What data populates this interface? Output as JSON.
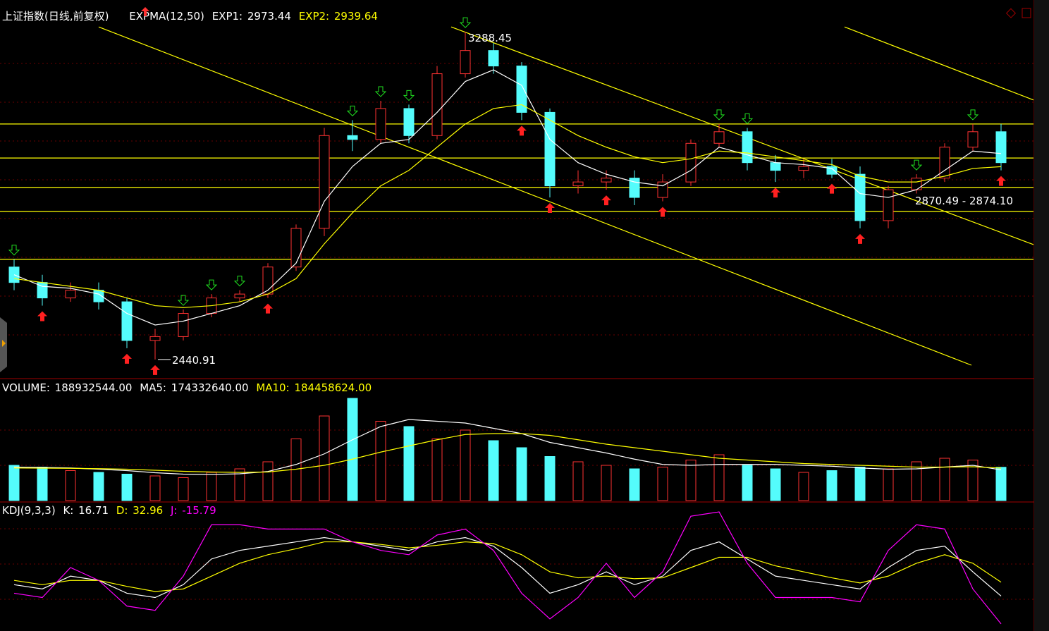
{
  "chart_data": [
    {
      "type": "candlestick",
      "title": "上证指数(日线,前复权)",
      "indicator": "EXPMA(12,50)",
      "up_color": "#ff3232",
      "down_color": "#54fcfc",
      "ylim": [
        2395,
        3316
      ],
      "candles": {
        "open": [
          2680,
          2640,
          2600,
          2620,
          2590,
          2490,
          2500,
          2560,
          2600,
          2610,
          2680,
          2780,
          3020,
          3010,
          3090,
          3020,
          3180,
          3240,
          3200,
          3080,
          2890,
          2900,
          2910,
          2860,
          2900,
          3000,
          3030,
          2950,
          2930,
          2940,
          2920,
          2800,
          2880,
          2910,
          2990,
          3030
        ],
        "high": [
          2700,
          2660,
          2640,
          2640,
          2600,
          2520,
          2570,
          2610,
          2620,
          2690,
          2790,
          3040,
          3060,
          3110,
          3100,
          3200,
          3288.45,
          3260,
          3210,
          3090,
          2930,
          2930,
          2930,
          2920,
          3010,
          3050,
          3040,
          2970,
          2960,
          2960,
          2940,
          2890,
          2920,
          3000,
          3050,
          3050
        ],
        "low": [
          2620,
          2580,
          2590,
          2570,
          2470,
          2440.91,
          2490,
          2550,
          2590,
          2600,
          2670,
          2760,
          2980,
          3000,
          3000,
          3010,
          3170,
          3180,
          3060,
          2860,
          2870,
          2880,
          2840,
          2850,
          2890,
          2990,
          2930,
          2900,
          2910,
          2910,
          2780,
          2780,
          2870,
          2900,
          2980,
          2930
        ],
        "close": [
          2640,
          2600,
          2620,
          2590,
          2490,
          2500,
          2560,
          2600,
          2610,
          2680,
          2780,
          3020,
          3010,
          3090,
          3020,
          3180,
          3240,
          3200,
          3080,
          2890,
          2900,
          2910,
          2860,
          2900,
          3000,
          3030,
          2950,
          2930,
          2940,
          2920,
          2800,
          2880,
          2910,
          2990,
          3030,
          2950
        ]
      },
      "series": [
        {
          "name": "EXP1:",
          "color": "#ffffff",
          "values": [
            2660,
            2630,
            2625,
            2610,
            2560,
            2530,
            2540,
            2560,
            2580,
            2620,
            2690,
            2850,
            2940,
            3000,
            3010,
            3080,
            3160,
            3190,
            3150,
            3010,
            2950,
            2920,
            2900,
            2890,
            2930,
            2990,
            2970,
            2950,
            2945,
            2935,
            2870,
            2860,
            2880,
            2930,
            2980,
            2973.44
          ]
        },
        {
          "name": "EXP2:",
          "color": "#ffff00",
          "values": [
            2650,
            2640,
            2630,
            2620,
            2600,
            2580,
            2575,
            2580,
            2590,
            2610,
            2650,
            2740,
            2820,
            2890,
            2930,
            2990,
            3050,
            3090,
            3100,
            3060,
            3020,
            2990,
            2965,
            2950,
            2960,
            2980,
            2975,
            2965,
            2955,
            2945,
            2915,
            2900,
            2900,
            2915,
            2935,
            2939.64
          ]
        }
      ],
      "hlines": [
        3050,
        2962,
        2886,
        2824,
        2700
      ],
      "trendlines": [
        [
          [
            3,
            3301
          ],
          [
            33.95,
            2426
          ]
        ],
        [
          [
            15.5,
            3301
          ],
          [
            36.15,
            2738
          ]
        ],
        [
          [
            29.45,
            3301
          ],
          [
            36.15,
            3112
          ]
        ]
      ],
      "buy_signals": [
        1,
        4,
        5,
        9,
        18,
        19,
        21,
        23,
        27,
        29,
        30,
        35
      ],
      "sell_signals": [
        0,
        6,
        7,
        8,
        12,
        13,
        14,
        16,
        25,
        26,
        32,
        34
      ],
      "range_annotation": "2870.49 - 2874.10"
    },
    {
      "type": "bar",
      "ylim": [
        0,
        680000000
      ],
      "series": [
        {
          "name": "VOLUME:",
          "last_label": "188932544.00",
          "values": [
            200000000,
            190000000,
            170000000,
            160000000,
            150000000,
            140000000,
            130000000,
            160000000,
            180000000,
            220000000,
            350000000,
            480000000,
            580000000,
            450000000,
            420000000,
            350000000,
            400000000,
            340000000,
            300000000,
            250000000,
            220000000,
            200000000,
            180000000,
            190000000,
            230000000,
            260000000,
            200000000,
            180000000,
            160000000,
            170000000,
            190000000,
            180000000,
            220000000,
            240000000,
            230000000,
            188932544
          ]
        },
        {
          "name": "MA5:",
          "last_label": "174332640.00",
          "color": "#ffffff",
          "values": [
            190000000,
            188000000,
            185000000,
            178000000,
            170000000,
            158000000,
            150000000,
            148000000,
            152000000,
            165000000,
            205000000,
            265000000,
            345000000,
            420000000,
            460000000,
            450000000,
            440000000,
            410000000,
            380000000,
            330000000,
            300000000,
            270000000,
            235000000,
            205000000,
            200000000,
            205000000,
            205000000,
            205000000,
            200000000,
            195000000,
            185000000,
            178000000,
            180000000,
            190000000,
            200000000,
            174332640
          ]
        },
        {
          "name": "MA10:",
          "last_label": "184458624.00",
          "color": "#ffff00",
          "values": [
            185000000,
            184000000,
            183000000,
            181000000,
            178000000,
            172000000,
            166000000,
            162000000,
            160000000,
            162000000,
            178000000,
            200000000,
            235000000,
            275000000,
            310000000,
            345000000,
            375000000,
            380000000,
            380000000,
            370000000,
            345000000,
            320000000,
            300000000,
            280000000,
            260000000,
            240000000,
            230000000,
            220000000,
            210000000,
            205000000,
            200000000,
            195000000,
            190000000,
            190000000,
            192000000,
            184458624
          ]
        }
      ]
    },
    {
      "type": "line",
      "indicator": "KDJ(9,3,3)",
      "ylim": [
        -20,
        120
      ],
      "series": [
        {
          "name": "K:",
          "color": "#ffffff",
          "values": [
            30,
            25,
            40,
            35,
            20,
            15,
            30,
            60,
            70,
            75,
            80,
            85,
            80,
            75,
            70,
            80,
            85,
            75,
            50,
            20,
            30,
            45,
            30,
            40,
            70,
            80,
            60,
            40,
            35,
            30,
            25,
            50,
            70,
            75,
            45,
            16.71
          ]
        },
        {
          "name": "D:",
          "color": "#ffff00",
          "values": [
            35,
            30,
            35,
            35,
            28,
            22,
            25,
            40,
            55,
            65,
            72,
            80,
            80,
            77,
            73,
            76,
            80,
            78,
            65,
            45,
            38,
            40,
            37,
            38,
            50,
            62,
            62,
            52,
            45,
            38,
            32,
            40,
            55,
            65,
            55,
            32.96
          ]
        },
        {
          "name": "J:",
          "color": "#ff00ff",
          "values": [
            20,
            15,
            50,
            35,
            5,
            0,
            40,
            100,
            100,
            95,
            95,
            95,
            80,
            70,
            65,
            88,
            95,
            70,
            20,
            -10,
            15,
            55,
            15,
            45,
            110,
            115,
            55,
            15,
            15,
            15,
            10,
            70,
            100,
            95,
            25,
            -15.79
          ]
        }
      ]
    }
  ]
}
